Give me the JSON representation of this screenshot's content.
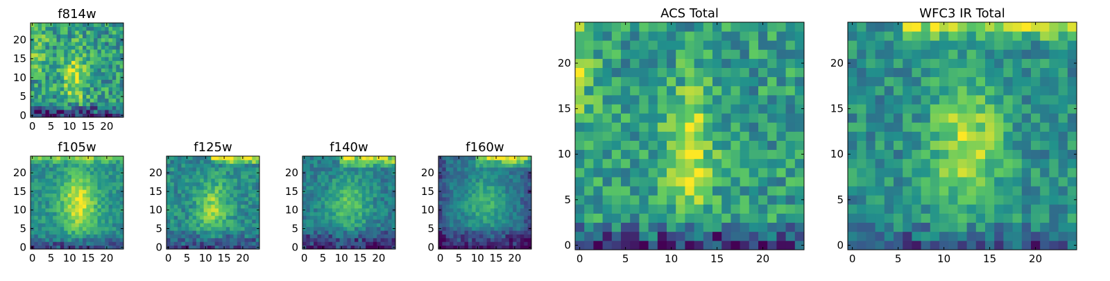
{
  "figure": {
    "colormap": "viridis",
    "colormap_stops": [
      "#440154",
      "#3b528b",
      "#21918c",
      "#5ec962",
      "#fde725"
    ]
  },
  "chart_data": [
    {
      "type": "heatmap",
      "id": "f814w",
      "title": "f814w",
      "xlim": [
        -0.5,
        24.5
      ],
      "ylim": [
        -0.5,
        24.5
      ],
      "xticks": [
        0,
        5,
        10,
        15,
        20
      ],
      "yticks": [
        0,
        5,
        10,
        15,
        20
      ],
      "grid_size": 25,
      "features": {
        "base": 0.55,
        "noise": 0.22,
        "blobs": [
          {
            "x": 11.5,
            "y": 10,
            "sx": 2.2,
            "sy": 5.5,
            "a": 0.35
          }
        ],
        "bands": [
          {
            "edge": "left",
            "width": 6,
            "ymin": 12,
            "a": 0.2
          }
        ],
        "dark": [
          {
            "edge": "bottom",
            "width": 4,
            "a": -0.45
          }
        ]
      }
    },
    {
      "type": "heatmap",
      "id": "f105w",
      "title": "f105w",
      "xlim": [
        -0.5,
        24.5
      ],
      "ylim": [
        -0.5,
        24.5
      ],
      "xticks": [
        0,
        5,
        10,
        15,
        20
      ],
      "yticks": [
        0,
        5,
        10,
        15,
        20
      ],
      "grid_size": 25,
      "features": {
        "base": 0.5,
        "noise": 0.12,
        "blobs": [
          {
            "x": 12.5,
            "y": 12,
            "sx": 3.5,
            "sy": 5.5,
            "a": 0.45
          }
        ],
        "bands": [
          {
            "edge": "top",
            "width": 2,
            "a": 0.25
          }
        ],
        "dark": [
          {
            "edge": "bottom",
            "width": 4,
            "a": -0.3
          }
        ]
      }
    },
    {
      "type": "heatmap",
      "id": "f125w",
      "title": "f125w",
      "xlim": [
        -0.5,
        24.5
      ],
      "ylim": [
        -0.5,
        24.5
      ],
      "xticks": [
        0,
        5,
        10,
        15,
        20
      ],
      "yticks": [
        0,
        5,
        10,
        15,
        20
      ],
      "grid_size": 25,
      "features": {
        "base": 0.48,
        "noise": 0.14,
        "blobs": [
          {
            "x": 12,
            "y": 11,
            "sx": 3,
            "sy": 5,
            "a": 0.35
          }
        ],
        "bands": [
          {
            "edge": "top",
            "width": 2,
            "xmin": 12,
            "a": 0.45
          }
        ],
        "dark": [
          {
            "edge": "bottom",
            "width": 5,
            "a": -0.28
          }
        ]
      }
    },
    {
      "type": "heatmap",
      "id": "f140w",
      "title": "f140w",
      "xlim": [
        -0.5,
        24.5
      ],
      "ylim": [
        -0.5,
        24.5
      ],
      "xticks": [
        0,
        5,
        10,
        15,
        20
      ],
      "yticks": [
        0,
        5,
        10,
        15,
        20
      ],
      "grid_size": 25,
      "features": {
        "base": 0.42,
        "noise": 0.12,
        "blobs": [
          {
            "x": 12,
            "y": 12,
            "sx": 4,
            "sy": 5,
            "a": 0.3
          }
        ],
        "bands": [
          {
            "edge": "top",
            "width": 3,
            "xmin": 10,
            "a": 0.5
          }
        ],
        "dark": [
          {
            "edge": "bottom",
            "width": 6,
            "a": -0.32
          }
        ]
      }
    },
    {
      "type": "heatmap",
      "id": "f160w",
      "title": "f160w",
      "xlim": [
        -0.5,
        24.5
      ],
      "ylim": [
        -0.5,
        24.5
      ],
      "xticks": [
        0,
        5,
        10,
        15,
        20
      ],
      "yticks": [
        0,
        5,
        10,
        15,
        20
      ],
      "grid_size": 25,
      "features": {
        "base": 0.38,
        "noise": 0.1,
        "blobs": [
          {
            "x": 12,
            "y": 12,
            "sx": 4,
            "sy": 5,
            "a": 0.28
          }
        ],
        "bands": [
          {
            "edge": "top",
            "width": 3,
            "xmin": 10,
            "a": 0.55
          }
        ],
        "dark": [
          {
            "edge": "bottom",
            "width": 6,
            "a": -0.32
          },
          {
            "edge": "left",
            "width": 3,
            "a": -0.15
          },
          {
            "edge": "right",
            "width": 3,
            "a": -0.15
          }
        ]
      }
    },
    {
      "type": "heatmap",
      "id": "acs-total",
      "title": "ACS Total",
      "xlim": [
        -0.5,
        24.5
      ],
      "ylim": [
        -0.5,
        24.5
      ],
      "xticks": [
        0,
        5,
        10,
        15,
        20
      ],
      "yticks": [
        0,
        5,
        10,
        15,
        20
      ],
      "grid_size": 25,
      "features": {
        "base": 0.55,
        "noise": 0.2,
        "blobs": [
          {
            "x": 12,
            "y": 10,
            "sx": 1.8,
            "sy": 5,
            "a": 0.4
          }
        ],
        "bands": [
          {
            "edge": "left",
            "width": 3,
            "ymin": 14,
            "a": 0.22
          }
        ],
        "dark": [
          {
            "edge": "bottom",
            "width": 3,
            "a": -0.45
          }
        ]
      }
    },
    {
      "type": "heatmap",
      "id": "wfc3-ir-total",
      "title": "WFC3 IR Total",
      "xlim": [
        -0.5,
        24.5
      ],
      "ylim": [
        -0.5,
        24.5
      ],
      "xticks": [
        0,
        5,
        10,
        15,
        20
      ],
      "yticks": [
        0,
        5,
        10,
        15,
        20
      ],
      "grid_size": 25,
      "features": {
        "base": 0.5,
        "noise": 0.16,
        "blobs": [
          {
            "x": 12.5,
            "y": 11,
            "sx": 2.8,
            "sy": 5,
            "a": 0.38
          }
        ],
        "bands": [
          {
            "edge": "top",
            "width": 2,
            "xmin": 6,
            "a": 0.35
          }
        ],
        "dark": [
          {
            "edge": "bottom",
            "width": 3,
            "a": -0.25
          }
        ]
      }
    }
  ]
}
